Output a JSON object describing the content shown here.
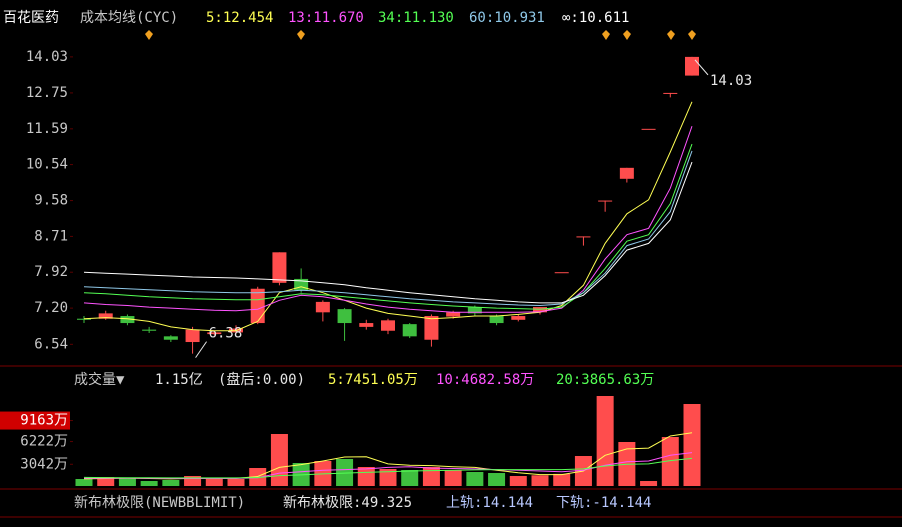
{
  "chart_data": [
    {
      "type": "candlestick",
      "title": "百花医药",
      "subtitle": "成本均线(CYC)",
      "categories": [
        null,
        null,
        null,
        null,
        null,
        null,
        null,
        null,
        null,
        null,
        null,
        null,
        null,
        null,
        null,
        null,
        null,
        null,
        null,
        null,
        null,
        null,
        null,
        null,
        null,
        null,
        null,
        null,
        null
      ],
      "open": [
        7.0,
        7.0,
        7.05,
        6.8,
        6.68,
        6.58,
        6.72,
        6.75,
        6.92,
        7.7,
        7.78,
        7.12,
        7.18,
        6.85,
        6.78,
        6.9,
        6.62,
        7.04,
        7.22,
        7.05,
        6.98,
        7.12,
        7.92,
        8.71,
        9.58,
        10.15,
        11.59,
        12.75,
        13.35
      ],
      "high": [
        7.05,
        7.15,
        7.08,
        6.85,
        6.7,
        6.85,
        6.78,
        6.88,
        7.62,
        8.35,
        8.0,
        7.35,
        7.2,
        6.98,
        7.0,
        6.92,
        7.08,
        7.15,
        7.25,
        7.08,
        7.08,
        7.22,
        7.92,
        8.71,
        9.58,
        10.45,
        11.59,
        12.75,
        14.03
      ],
      "low": [
        6.92,
        6.98,
        6.88,
        6.74,
        6.58,
        6.38,
        6.7,
        6.72,
        6.9,
        7.65,
        7.5,
        6.95,
        6.6,
        6.8,
        6.72,
        6.65,
        6.5,
        7.0,
        7.05,
        6.88,
        6.95,
        7.08,
        7.92,
        8.5,
        9.3,
        10.05,
        11.59,
        12.6,
        13.35
      ],
      "close": [
        6.98,
        7.1,
        6.92,
        6.78,
        6.62,
        6.8,
        6.75,
        6.82,
        7.58,
        8.35,
        7.55,
        7.32,
        6.92,
        6.92,
        6.97,
        6.68,
        7.05,
        7.12,
        7.1,
        6.92,
        7.05,
        7.22,
        7.92,
        8.71,
        9.58,
        10.45,
        11.59,
        12.75,
        14.03
      ],
      "up_color": "#ff4d4d",
      "down_color": "#3fbf3f",
      "series": [
        {
          "name": "5:12.454",
          "color": "#ffff54",
          "values": [
            7.0,
            7.02,
            7.0,
            6.95,
            6.85,
            6.8,
            6.78,
            6.78,
            6.95,
            7.5,
            7.62,
            7.5,
            7.35,
            7.2,
            7.1,
            7.05,
            7.0,
            7.02,
            7.05,
            7.05,
            7.08,
            7.12,
            7.25,
            7.65,
            8.55,
            9.25,
            9.6,
            10.9,
            12.454
          ]
        },
        {
          "name": "13:11.670",
          "color": "#ff54ff",
          "values": [
            7.3,
            7.27,
            7.25,
            7.22,
            7.2,
            7.18,
            7.16,
            7.15,
            7.18,
            7.35,
            7.45,
            7.42,
            7.35,
            7.28,
            7.22,
            7.18,
            7.15,
            7.12,
            7.12,
            7.12,
            7.12,
            7.13,
            7.2,
            7.55,
            8.2,
            8.75,
            8.9,
            9.9,
            11.67
          ]
        },
        {
          "name": "34:11.130",
          "color": "#54ff54",
          "values": [
            7.5,
            7.48,
            7.45,
            7.42,
            7.4,
            7.38,
            7.37,
            7.36,
            7.36,
            7.42,
            7.48,
            7.46,
            7.42,
            7.38,
            7.34,
            7.3,
            7.27,
            7.24,
            7.22,
            7.2,
            7.19,
            7.18,
            7.22,
            7.5,
            8.0,
            8.6,
            8.75,
            9.5,
            11.13
          ]
        },
        {
          "name": "60:10.931",
          "color": "#8fc8e8",
          "values": [
            7.62,
            7.6,
            7.58,
            7.56,
            7.54,
            7.52,
            7.51,
            7.5,
            7.5,
            7.52,
            7.55,
            7.53,
            7.5,
            7.46,
            7.42,
            7.38,
            7.35,
            7.32,
            7.3,
            7.28,
            7.26,
            7.25,
            7.28,
            7.5,
            7.9,
            8.5,
            8.65,
            9.3,
            10.931
          ]
        },
        {
          "name": "∞:10.611",
          "color": "#ffffff",
          "values": [
            7.92,
            7.9,
            7.88,
            7.86,
            7.84,
            7.82,
            7.81,
            7.8,
            7.78,
            7.76,
            7.74,
            7.7,
            7.66,
            7.6,
            7.55,
            7.5,
            7.46,
            7.42,
            7.38,
            7.35,
            7.32,
            7.3,
            7.3,
            7.45,
            7.85,
            8.4,
            8.55,
            9.1,
            10.611
          ]
        }
      ],
      "ylim": [
        6.24,
        14.48
      ],
      "log_scale": true,
      "grid": false,
      "yticks": [
        14.03,
        12.75,
        11.59,
        10.54,
        9.58,
        8.71,
        7.92,
        {
          "value": 7.2,
          "label": "7.20"
        },
        6.54
      ]
    },
    {
      "type": "bar",
      "title": "成交量▼",
      "subtitle": "1.15亿",
      "note": "(盘后:0.00)",
      "values": [
        980,
        1260,
        1120,
        700,
        840,
        1400,
        1000,
        980,
        2520,
        7280,
        3220,
        3500,
        3780,
        2660,
        2380,
        2240,
        2660,
        2240,
        1960,
        1820,
        1400,
        1500,
        1700,
        4200,
        12600,
        6160,
        700,
        6860,
        11480
      ],
      "up_color": "#ff4d4d",
      "down_color": "#3fbf3f",
      "series": [
        {
          "name": "5:7451.05万",
          "color": "#ffff54",
          "values": [
            1000,
            1050,
            1100,
            1050,
            1000,
            1060,
            1060,
            1070,
            1330,
            2600,
            3000,
            3500,
            4060,
            4090,
            3100,
            2900,
            2850,
            2700,
            2600,
            2200,
            1860,
            1600,
            1600,
            2100,
            4300,
            5200,
            5300,
            7000,
            7451.05
          ]
        },
        {
          "name": "10:4682.58万",
          "color": "#ff54ff",
          "values": [
            1100,
            1100,
            1100,
            1080,
            1060,
            1060,
            1060,
            1060,
            1150,
            1800,
            2000,
            2200,
            2300,
            2400,
            2600,
            2700,
            2500,
            2450,
            2400,
            2300,
            2200,
            2100,
            2000,
            2200,
            2900,
            3400,
            3500,
            4300,
            4682.58
          ]
        },
        {
          "name": "20:3865.63万",
          "color": "#54ff54",
          "values": [
            1200,
            1180,
            1160,
            1150,
            1140,
            1140,
            1140,
            1140,
            1180,
            1450,
            1560,
            1700,
            1800,
            1900,
            2000,
            2100,
            2150,
            2200,
            2250,
            2300,
            2300,
            2300,
            2300,
            2400,
            2800,
            3050,
            3100,
            3550,
            3865.63
          ]
        }
      ],
      "ylim": [
        0,
        12740
      ],
      "grid": false,
      "yticks": [
        {
          "value": 9163,
          "label": "9163万"
        },
        {
          "value": 6222,
          "label": "6222万"
        },
        {
          "value": 3042,
          "label": "3042万"
        }
      ]
    }
  ],
  "indicator": {
    "title": "新布林极限(NEWBBLIMIT)",
    "items": [
      {
        "text": "新布林极限:49.325",
        "color": "#e6e6e6"
      },
      {
        "text": "上轨:14.144",
        "color": "#b8c8ff"
      },
      {
        "text": "下轨:-14.144",
        "color": "#b8c8ff"
      }
    ]
  }
}
